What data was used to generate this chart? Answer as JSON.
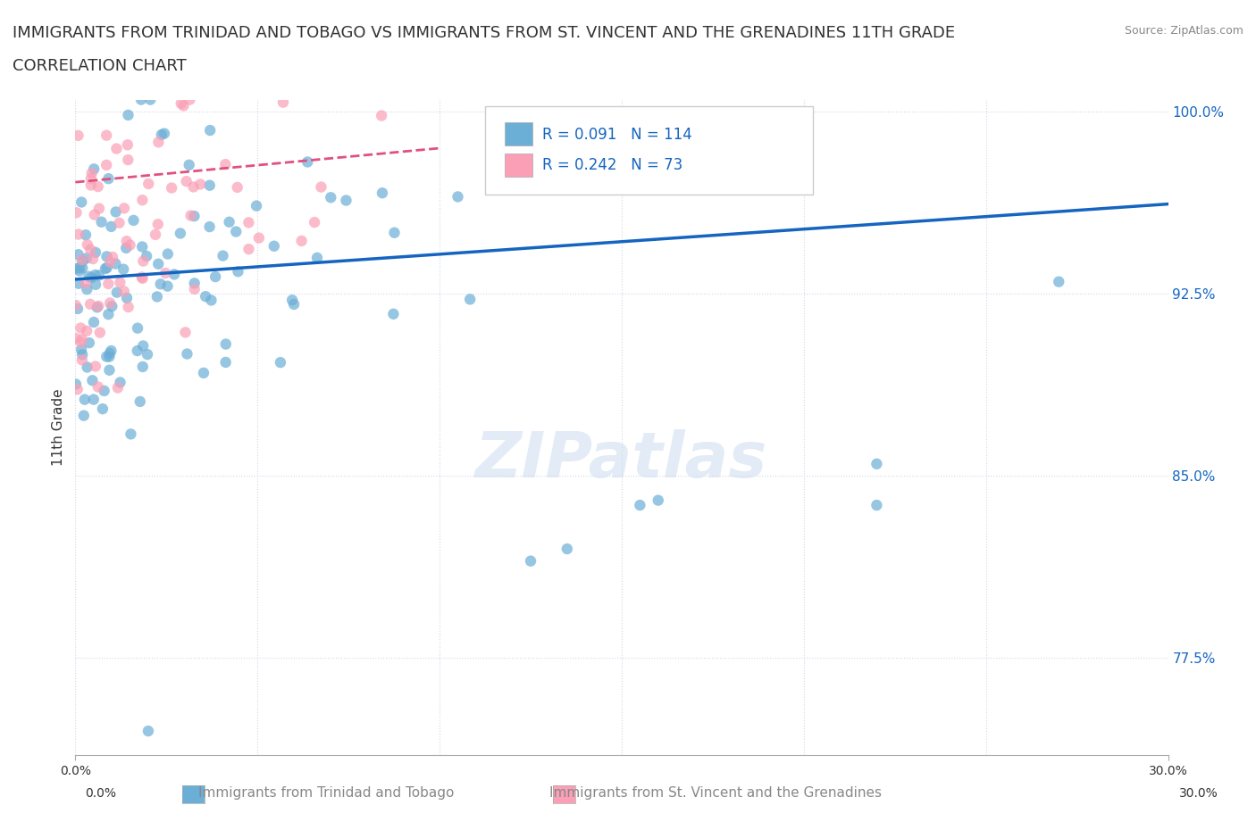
{
  "title_line1": "IMMIGRANTS FROM TRINIDAD AND TOBAGO VS IMMIGRANTS FROM ST. VINCENT AND THE GRENADINES 11TH GRADE",
  "title_line2": "CORRELATION CHART",
  "source": "Source: ZipAtlas.com",
  "xlabel": "",
  "ylabel": "11th Grade",
  "x_label_bottom1": "Immigrants from Trinidad and Tobago",
  "x_label_bottom2": "Immigrants from St. Vincent and the Grenadines",
  "xlim": [
    0.0,
    0.3
  ],
  "ylim": [
    0.735,
    1.005
  ],
  "xtick_labels": [
    "0.0%",
    "30.0%"
  ],
  "ytick_positions": [
    1.0,
    0.925,
    0.85,
    0.775
  ],
  "ytick_labels": [
    "100.0%",
    "92.5%",
    "85.0%",
    "77.5%"
  ],
  "color_blue": "#6baed6",
  "color_pink": "#fa9fb5",
  "trendline_blue": "#1565c0",
  "trendline_pink": "#e05080",
  "R_blue": 0.091,
  "N_blue": 114,
  "R_pink": 0.242,
  "N_pink": 73,
  "legend_text_color": "#1565c0",
  "watermark": "ZIPatlas",
  "background_color": "#ffffff",
  "grid_color": "#d0d8e8",
  "title_color": "#333333",
  "seed_blue": 42,
  "seed_pink": 99
}
